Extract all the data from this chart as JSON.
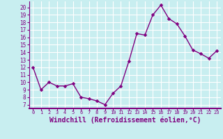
{
  "x": [
    0,
    1,
    2,
    3,
    4,
    5,
    6,
    7,
    8,
    9,
    10,
    11,
    12,
    13,
    14,
    15,
    16,
    17,
    18,
    19,
    20,
    21,
    22,
    23
  ],
  "y": [
    12,
    9,
    10,
    9.5,
    9.5,
    9.8,
    8,
    7.8,
    7.5,
    7,
    8.5,
    9.5,
    12.8,
    16.5,
    16.3,
    19,
    20.3,
    18.5,
    17.8,
    16.2,
    14.3,
    13.8,
    13.2,
    14.2
  ],
  "line_color": "#800080",
  "marker": "D",
  "marker_size": 2.5,
  "linewidth": 1.0,
  "xlabel": "Windchill (Refroidissement éolien,°C)",
  "xlabel_fontsize": 7,
  "ytick_labels": [
    "7",
    "8",
    "9",
    "10",
    "11",
    "12",
    "13",
    "14",
    "15",
    "16",
    "17",
    "18",
    "19",
    "20"
  ],
  "yticks": [
    7,
    8,
    9,
    10,
    11,
    12,
    13,
    14,
    15,
    16,
    17,
    18,
    19,
    20
  ],
  "xticks": [
    0,
    1,
    2,
    3,
    4,
    5,
    6,
    7,
    8,
    9,
    10,
    11,
    12,
    13,
    14,
    15,
    16,
    17,
    18,
    19,
    20,
    21,
    22,
    23
  ],
  "ylim": [
    6.5,
    20.8
  ],
  "xlim": [
    -0.5,
    23.5
  ],
  "background_color": "#c8eef0",
  "grid_color": "#ffffff",
  "tick_color": "#800080",
  "label_color": "#800080",
  "spine_color": "#800080",
  "separator_color": "#800080"
}
